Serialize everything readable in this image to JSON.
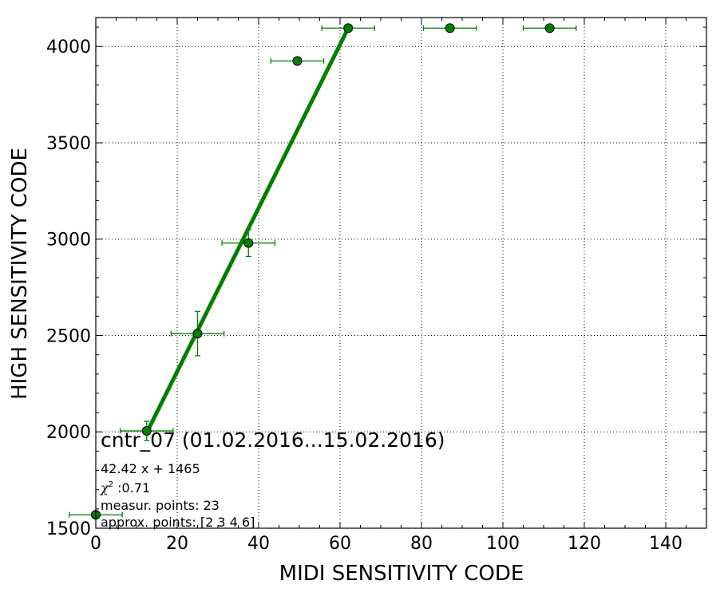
{
  "chart_data": {
    "type": "scatter",
    "xlabel": "MIDI SENSITIVITY CODE",
    "ylabel": "HIGH SENSITIVITY CODE",
    "xlim": [
      0,
      150
    ],
    "ylim": [
      1500,
      4150
    ],
    "xticks": [
      0,
      20,
      40,
      60,
      80,
      100,
      120,
      140
    ],
    "yticks": [
      1500,
      2000,
      2500,
      3000,
      3500,
      4000
    ],
    "grid": true,
    "colors": {
      "series": "#008000",
      "marker": "#008000",
      "edge": "#000000"
    },
    "points": [
      {
        "x": 0,
        "y": 1570,
        "xerr": 6.5,
        "yerr": 0
      },
      {
        "x": 12.5,
        "y": 2005,
        "xerr": 6.5,
        "yerr": 50
      },
      {
        "x": 25,
        "y": 2510,
        "xerr": 6.5,
        "yerr": 115
      },
      {
        "x": 37.5,
        "y": 2980,
        "xerr": 6.5,
        "yerr": 70
      },
      {
        "x": 49.5,
        "y": 3925,
        "xerr": 6.5,
        "yerr": 0
      },
      {
        "x": 62,
        "y": 4095,
        "xerr": 6.5,
        "yerr": 0
      },
      {
        "x": 87,
        "y": 4095,
        "xerr": 6.5,
        "yerr": 0
      },
      {
        "x": 111.5,
        "y": 4095,
        "xerr": 6.5,
        "yerr": 0
      }
    ],
    "fit": {
      "slope": 42.42,
      "intercept": 1465,
      "x_range": [
        12.5,
        62
      ]
    },
    "annotations": {
      "title": "cntr_07 (01.02.2016...15.02.2016)",
      "equation": "42.42 x + 1465",
      "chi2_symbol": "χ",
      "chi2_sup": "2",
      "chi2_value": " :0.71",
      "measur_points": "measur. points: 23",
      "approx_points": "approx. points: [2 3 4 6]"
    }
  }
}
